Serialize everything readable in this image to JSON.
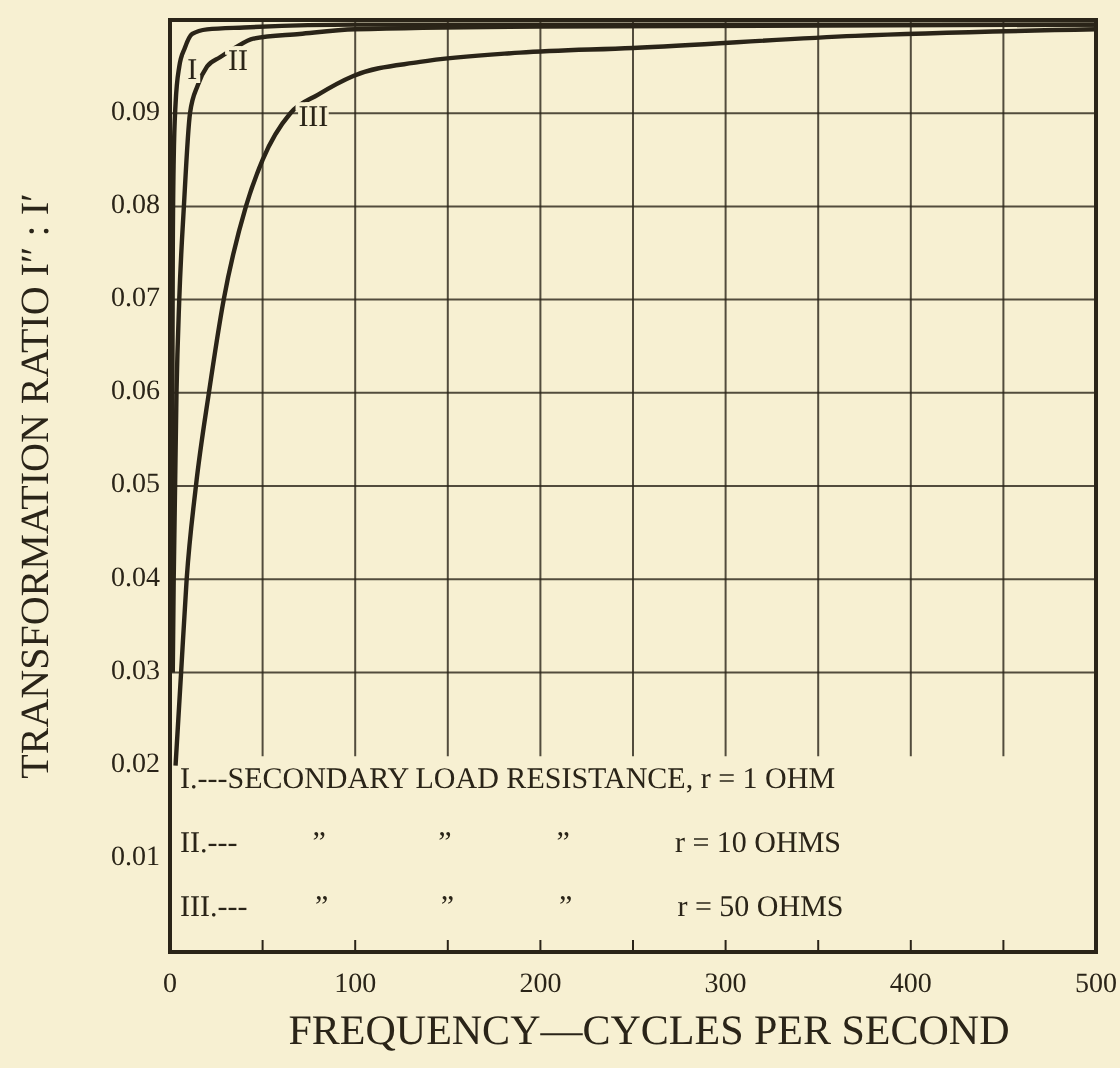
{
  "chart_data": {
    "type": "line",
    "xlabel": "FREQUENCY—CYCLES PER SECOND",
    "ylabel": "TRANSFORMATION RATIO I″ : I′",
    "xlim": [
      0,
      500
    ],
    "ylim": [
      0,
      0.1
    ],
    "xticks": [
      0,
      {
        "value": 50,
        "label": null
      },
      100,
      {
        "value": 150,
        "label": null
      },
      200,
      {
        "value": 250,
        "label": null
      },
      300,
      {
        "value": 350,
        "label": null
      },
      400,
      {
        "value": 450,
        "label": null
      },
      500
    ],
    "yticks": [
      0.01,
      0.02,
      0.03,
      0.04,
      0.05,
      0.06,
      0.07,
      0.08,
      0.09
    ],
    "grid": true,
    "marker": "none",
    "line_style": "solid",
    "series": [
      {
        "color": "#2a2418",
        "x": [
          1,
          1.5,
          2,
          3,
          5,
          8,
          12,
          20,
          40,
          100,
          500
        ],
        "values": [
          0.043,
          0.075,
          0.085,
          0.091,
          0.095,
          0.097,
          0.0985,
          0.099,
          0.0992,
          0.0995,
          0.0995
        ]
      },
      {
        "color": "#2a2418",
        "x": [
          1.5,
          2,
          3.5,
          5,
          7.5,
          10.8,
          15,
          20,
          27,
          35,
          45,
          70,
          100,
          200,
          500
        ],
        "values": [
          0.03,
          0.04,
          0.06,
          0.07,
          0.08,
          0.09,
          0.093,
          0.095,
          0.096,
          0.097,
          0.098,
          0.0985,
          0.099,
          0.0993,
          0.0995
        ]
      },
      {
        "color": "#2a2418",
        "x": [
          3,
          6,
          9,
          14,
          21,
          29,
          41,
          50,
          65,
          80,
          99,
          135,
          189,
          250,
          370,
          500
        ],
        "values": [
          0.02,
          0.03,
          0.04,
          0.05,
          0.06,
          0.07,
          0.08,
          0.085,
          0.09,
          0.092,
          0.094,
          0.0955,
          0.0965,
          0.097,
          0.0983,
          0.099
        ]
      }
    ],
    "annotations": [
      {
        "text": "I",
        "x": 5,
        "y": 0.095
      },
      {
        "text": "II",
        "x": 27,
        "y": 0.096
      },
      {
        "text": "III",
        "x": 65,
        "y": 0.09
      },
      "I.---SECONDARY LOAD RESISTANCE, r = 1 OHM",
      "II.---          ”               ”              ”              r = 10 OHMS",
      "III.---         ”               ”              ”              r = 50 OHMS"
    ]
  }
}
